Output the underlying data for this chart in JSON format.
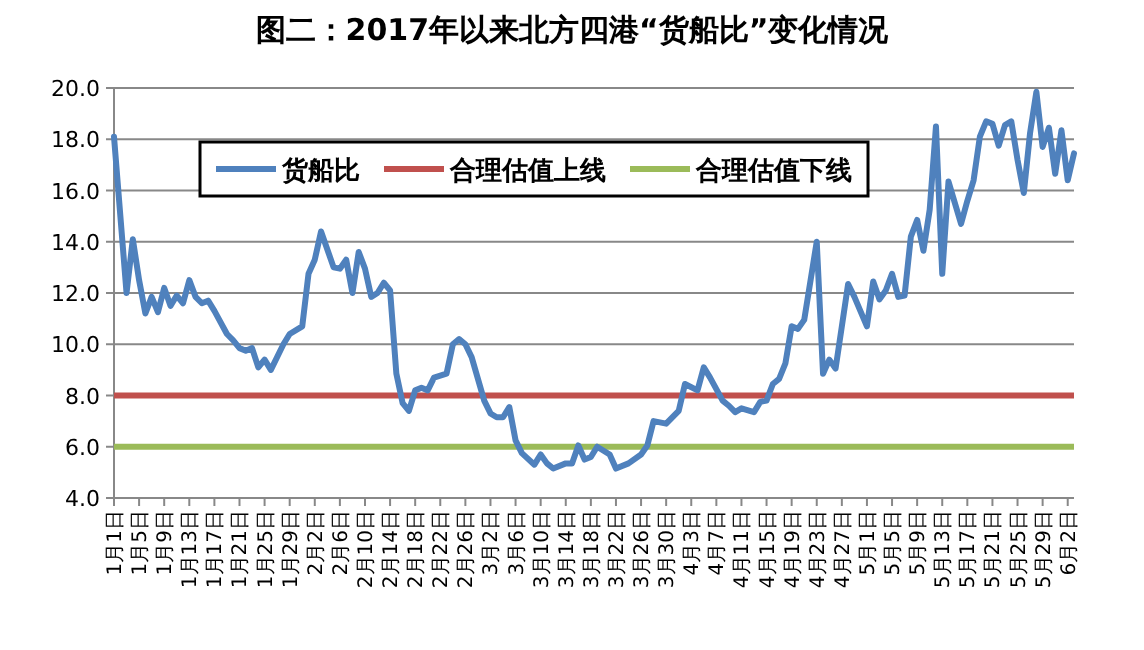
{
  "chart_data": {
    "type": "line",
    "title": "图二：2017年以来北方四港“货船比”变化情况",
    "x": [
      "--01-01",
      "--01-03",
      "--01-04",
      "--01-05",
      "--01-06",
      "--01-07",
      "--01-08",
      "--01-09",
      "--01-10",
      "--01-11",
      "--01-12",
      "--01-13",
      "--01-14",
      "--01-15",
      "--01-16",
      "--01-17",
      "--01-19",
      "--01-20",
      "--01-21",
      "--01-22",
      "--01-23",
      "--01-24",
      "--01-25",
      "--01-26",
      "--01-28",
      "--01-29",
      "--01-31",
      "--02-01",
      "--02-02",
      "--02-03",
      "--02-05",
      "--02-06",
      "--02-07",
      "--02-08",
      "--02-09",
      "--02-10",
      "--02-11",
      "--02-12",
      "--02-13",
      "--02-14",
      "--02-15",
      "--02-16",
      "--02-17",
      "--02-18",
      "--02-19",
      "--02-20",
      "--02-21",
      "--02-23",
      "--02-24",
      "--02-25",
      "--02-26",
      "--02-27",
      "--03-01",
      "--03-02",
      "--03-03",
      "--03-04",
      "--03-05",
      "--03-06",
      "--03-07",
      "--03-09",
      "--03-10",
      "--03-11",
      "--03-12",
      "--03-14",
      "--03-15",
      "--03-16",
      "--03-17",
      "--03-18",
      "--03-19",
      "--03-21",
      "--03-22",
      "--03-24",
      "--03-26",
      "--03-27",
      "--03-28",
      "--03-30",
      "--04-01",
      "--04-02",
      "--04-04",
      "--04-05",
      "--04-06",
      "--04-08",
      "--04-09",
      "--04-10",
      "--04-11",
      "--04-13",
      "--04-14",
      "--04-15",
      "--04-16",
      "--04-17",
      "--04-18",
      "--04-19",
      "--04-20",
      "--04-21",
      "--04-23",
      "--04-24",
      "--04-25",
      "--04-26",
      "--04-27",
      "--04-28",
      "--04-29",
      "--05-01",
      "--05-02",
      "--05-03",
      "--05-04",
      "--05-05",
      "--05-06",
      "--05-07",
      "--05-08",
      "--05-09",
      "--05-10",
      "--05-11",
      "--05-12",
      "--05-13",
      "--05-14",
      "--05-16",
      "--05-17",
      "--05-18",
      "--05-19",
      "--05-20",
      "--05-21",
      "--05-22",
      "--05-23",
      "--05-24",
      "--05-25",
      "--05-26",
      "--05-27",
      "--05-28",
      "--05-29",
      "--05-30",
      "--05-31",
      "--06-01",
      "--06-02",
      "--06-03"
    ],
    "series": [
      {
        "name": "货船比",
        "color": "#4f81bd",
        "values": [
          18.1,
          12.0,
          14.1,
          12.5,
          11.2,
          11.85,
          11.25,
          12.2,
          11.5,
          11.9,
          11.6,
          12.5,
          11.85,
          11.6,
          11.7,
          11.3,
          10.4,
          10.15,
          9.85,
          9.75,
          9.85,
          9.1,
          9.4,
          9.0,
          10.0,
          10.4,
          10.7,
          12.75,
          13.3,
          14.4,
          13.0,
          12.95,
          13.3,
          12.0,
          13.6,
          12.95,
          11.85,
          12.0,
          12.4,
          12.1,
          8.85,
          7.7,
          7.4,
          8.2,
          8.3,
          8.2,
          8.7,
          8.85,
          10.0,
          10.2,
          10.0,
          9.5,
          7.8,
          7.3,
          7.15,
          7.15,
          7.55,
          6.25,
          5.75,
          5.3,
          5.7,
          5.35,
          5.15,
          5.35,
          5.35,
          6.05,
          5.5,
          5.6,
          6.0,
          5.7,
          5.15,
          5.35,
          5.7,
          6.05,
          7.0,
          6.9,
          7.4,
          8.45,
          8.2,
          9.1,
          8.7,
          7.8,
          7.6,
          7.35,
          7.5,
          7.35,
          7.75,
          7.8,
          8.45,
          8.65,
          9.25,
          10.7,
          10.6,
          10.95,
          14.0,
          8.85,
          9.4,
          9.05,
          10.7,
          12.35,
          11.85,
          10.7,
          12.45,
          11.75,
          12.1,
          12.75,
          11.85,
          11.9,
          14.2,
          14.85,
          13.65,
          15.25,
          18.5,
          12.75,
          16.35,
          14.7,
          15.6,
          16.4,
          18.1,
          18.7,
          18.6,
          17.75,
          18.55,
          18.7,
          17.2,
          15.9,
          18.25,
          19.85,
          17.7,
          18.45,
          16.65,
          18.35,
          16.4,
          17.45
        ]
      }
    ],
    "ref_lines": [
      {
        "axis": "y",
        "value": 8,
        "label": "合理估值上线",
        "color": "#c0504d"
      },
      {
        "axis": "y",
        "value": 6,
        "label": "合理估值下线",
        "color": "#9bbb59"
      }
    ],
    "xlim": [
      "--01-01",
      "--06-03"
    ],
    "xticks": [
      {
        "value": "--01-01",
        "label": "1月1日"
      },
      {
        "value": "--01-05",
        "label": "1月5日"
      },
      {
        "value": "--01-09",
        "label": "1月9日"
      },
      {
        "value": "--01-13",
        "label": "1月13日"
      },
      {
        "value": "--01-17",
        "label": "1月17日"
      },
      {
        "value": "--01-21",
        "label": "1月21日"
      },
      {
        "value": "--01-25",
        "label": "1月25日"
      },
      {
        "value": "--01-29",
        "label": "1月29日"
      },
      {
        "value": "--02-02",
        "label": "2月2日"
      },
      {
        "value": "--02-06",
        "label": "2月6日"
      },
      {
        "value": "--02-10",
        "label": "2月10日"
      },
      {
        "value": "--02-14",
        "label": "2月14日"
      },
      {
        "value": "--02-18",
        "label": "2月18日"
      },
      {
        "value": "--02-22",
        "label": "2月22日"
      },
      {
        "value": "--02-26",
        "label": "2月26日"
      },
      {
        "value": "--03-02",
        "label": "3月2日"
      },
      {
        "value": "--03-06",
        "label": "3月6日"
      },
      {
        "value": "--03-10",
        "label": "3月10日"
      },
      {
        "value": "--03-14",
        "label": "3月14日"
      },
      {
        "value": "--03-18",
        "label": "3月18日"
      },
      {
        "value": "--03-22",
        "label": "3月22日"
      },
      {
        "value": "--03-26",
        "label": "3月26日"
      },
      {
        "value": "--03-30",
        "label": "3月30日"
      },
      {
        "value": "--04-03",
        "label": "4月3日"
      },
      {
        "value": "--04-07",
        "label": "4月7日"
      },
      {
        "value": "--04-11",
        "label": "4月11日"
      },
      {
        "value": "--04-15",
        "label": "4月15日"
      },
      {
        "value": "--04-19",
        "label": "4月19日"
      },
      {
        "value": "--04-23",
        "label": "4月23日"
      },
      {
        "value": "--04-27",
        "label": "4月27日"
      },
      {
        "value": "--05-01",
        "label": "5月1日"
      },
      {
        "value": "--05-05",
        "label": "5月5日"
      },
      {
        "value": "--05-09",
        "label": "5月9日"
      },
      {
        "value": "--05-13",
        "label": "5月13日"
      },
      {
        "value": "--05-17",
        "label": "5月17日"
      },
      {
        "value": "--05-21",
        "label": "5月21日"
      },
      {
        "value": "--05-25",
        "label": "5月25日"
      },
      {
        "value": "--05-29",
        "label": "5月29日"
      },
      {
        "value": "--06-02",
        "label": "6月2日"
      }
    ],
    "ylim": [
      4,
      20
    ],
    "yticks": [
      {
        "value": 4,
        "label": "4.0"
      },
      {
        "value": 6,
        "label": "6.0"
      },
      {
        "value": 8,
        "label": "8.0"
      },
      {
        "value": 10,
        "label": "10.0"
      },
      {
        "value": 12,
        "label": "12.0"
      },
      {
        "value": 14,
        "label": "14.0"
      },
      {
        "value": 16,
        "label": "16.0"
      },
      {
        "value": 18,
        "label": "18.0"
      },
      {
        "value": 20,
        "label": "20.0"
      }
    ],
    "grid": "y",
    "legend": "top"
  }
}
